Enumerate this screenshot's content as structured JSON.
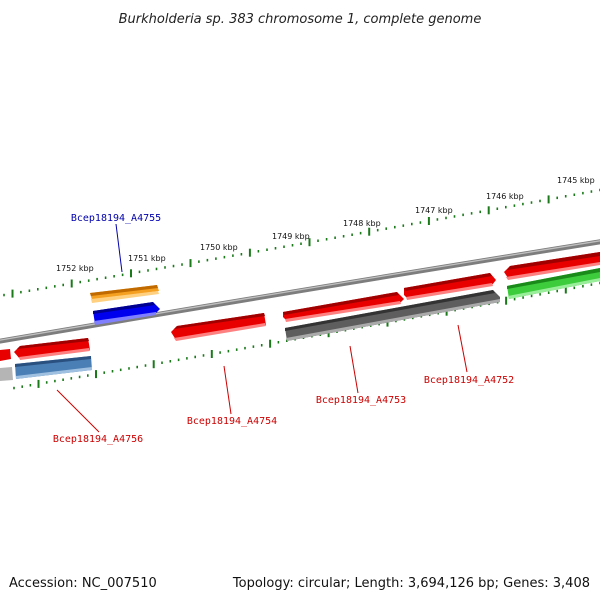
{
  "title": "Burkholderia sp. 383 chromosome 1, complete genome",
  "footer": {
    "accession": "Accession: NC_007510",
    "summary": "Topology: circular; Length: 3,694,126 bp; Genes: 3,408"
  },
  "ruler_labels": [
    "1745 kbp",
    "1746 kbp",
    "1747 kbp",
    "1748 kbp",
    "1749 kbp",
    "1750 kbp",
    "1751 kbp",
    "1752 kbp"
  ],
  "gene_labels": [
    {
      "name": "Bcep18194_A4755",
      "color": "#0000aa"
    },
    {
      "name": "Bcep18194_A4756",
      "color": "#cc0000"
    },
    {
      "name": "Bcep18194_A4754",
      "color": "#cc0000"
    },
    {
      "name": "Bcep18194_A4753",
      "color": "#cc0000"
    },
    {
      "name": "Bcep18194_A4752",
      "color": "#cc0000"
    }
  ],
  "colors": {
    "backbone": "#8a8a8a",
    "tick": "#1a7a1a",
    "gene_red": "#e60000",
    "gene_orange": "#f08c00",
    "gene_blue": "#0000e6",
    "gene_steel": "#4a7fb5",
    "gene_gray": "#666666",
    "gene_green": "#33cc33",
    "gene_lightgray": "#b0b0b0"
  }
}
